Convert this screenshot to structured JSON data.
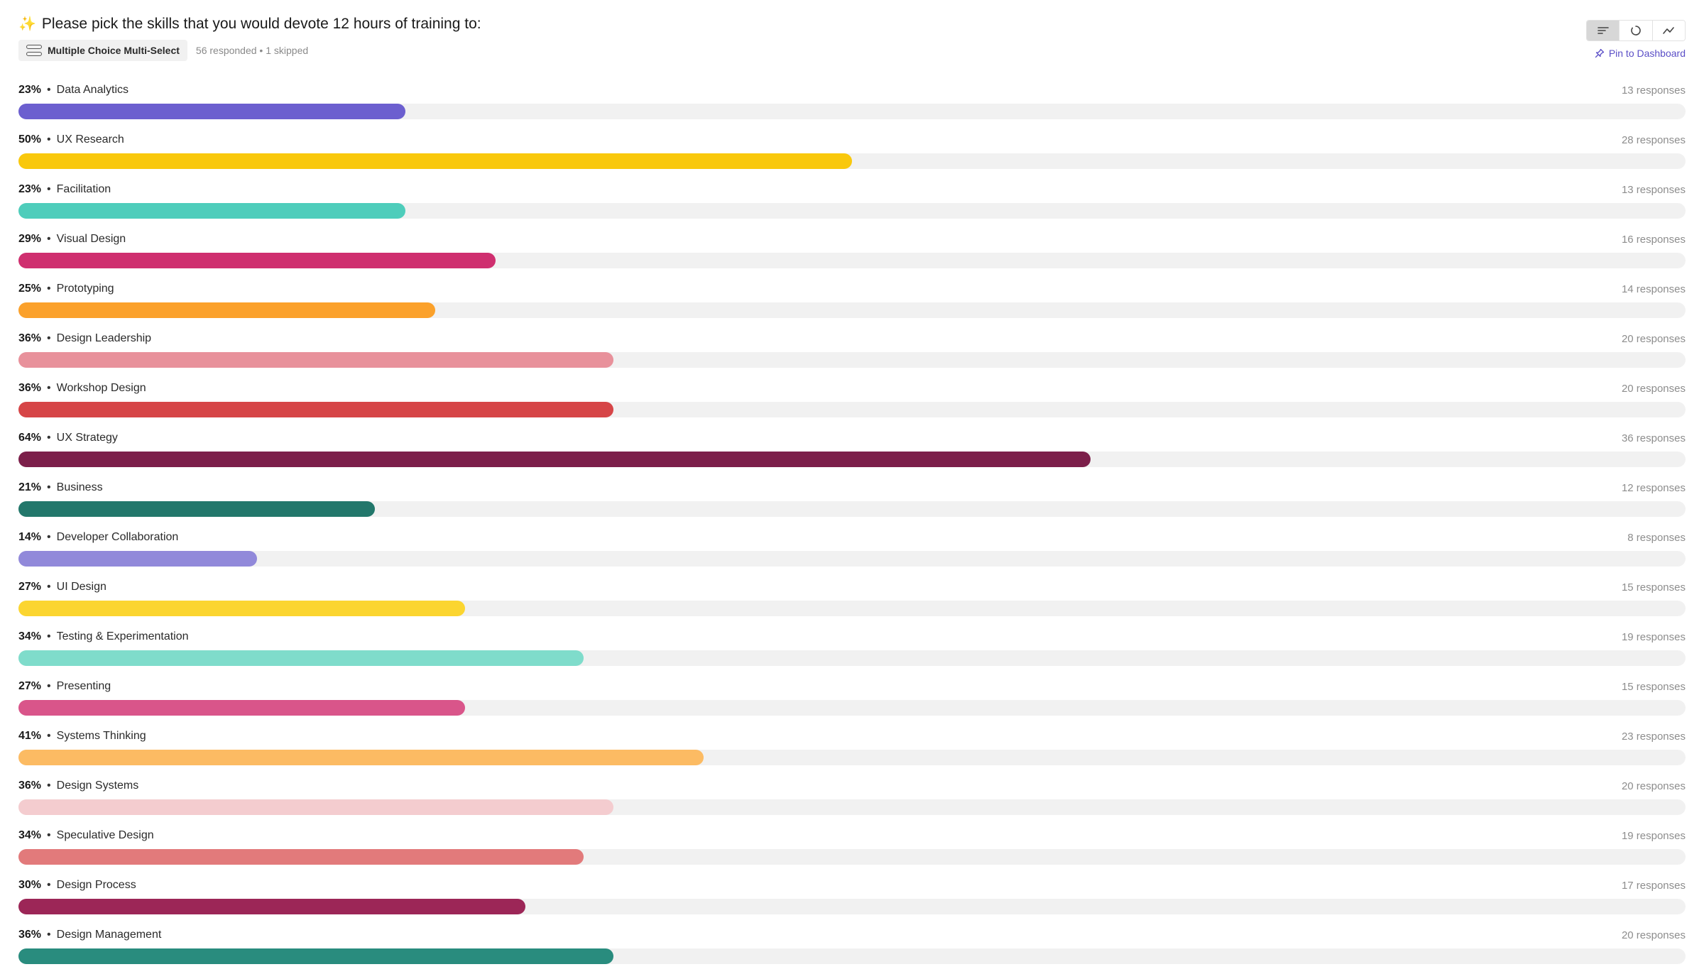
{
  "header": {
    "sparkle": "✨",
    "question": "Please pick the skills that you would devote 12 hours of training to:",
    "type_label": "Multiple Choice Multi-Select",
    "stats": "56 responded • 1 skipped",
    "pin_label": "Pin to Dashboard"
  },
  "view_toggle": {
    "options": [
      {
        "icon": "bar-list-icon",
        "active": true
      },
      {
        "icon": "donut-icon",
        "active": false
      },
      {
        "icon": "trend-line-icon",
        "active": false
      }
    ]
  },
  "chart_data": {
    "type": "bar",
    "orientation": "horizontal",
    "xlim": [
      0,
      1
    ],
    "items": [
      {
        "label": "Data Analytics",
        "percent": "23%",
        "responses": "13 responses",
        "value": 0.232,
        "color": "#6c5fcf"
      },
      {
        "label": "UX Research",
        "percent": "50%",
        "responses": "28 responses",
        "value": 0.5,
        "color": "#f9c80c"
      },
      {
        "label": "Facilitation",
        "percent": "23%",
        "responses": "13 responses",
        "value": 0.232,
        "color": "#4ecdbb"
      },
      {
        "label": "Visual Design",
        "percent": "29%",
        "responses": "16 responses",
        "value": 0.286,
        "color": "#cf2f6f"
      },
      {
        "label": "Prototyping",
        "percent": "25%",
        "responses": "14 responses",
        "value": 0.25,
        "color": "#fba12b"
      },
      {
        "label": "Design Leadership",
        "percent": "36%",
        "responses": "20 responses",
        "value": 0.357,
        "color": "#e8919b"
      },
      {
        "label": "Workshop Design",
        "percent": "36%",
        "responses": "20 responses",
        "value": 0.357,
        "color": "#d64547"
      },
      {
        "label": "UX Strategy",
        "percent": "64%",
        "responses": "36 responses",
        "value": 0.643,
        "color": "#7c1f4a"
      },
      {
        "label": "Business",
        "percent": "21%",
        "responses": "12 responses",
        "value": 0.214,
        "color": "#22776b"
      },
      {
        "label": "Developer Collaboration",
        "percent": "14%",
        "responses": "8 responses",
        "value": 0.143,
        "color": "#9189da"
      },
      {
        "label": "UI Design",
        "percent": "27%",
        "responses": "15 responses",
        "value": 0.268,
        "color": "#fbd530"
      },
      {
        "label": "Testing & Experimentation",
        "percent": "34%",
        "responses": "19 responses",
        "value": 0.339,
        "color": "#7fdccb"
      },
      {
        "label": "Presenting",
        "percent": "27%",
        "responses": "15 responses",
        "value": 0.268,
        "color": "#d9558a"
      },
      {
        "label": "Systems Thinking",
        "percent": "41%",
        "responses": "23 responses",
        "value": 0.411,
        "color": "#fcbb63"
      },
      {
        "label": "Design Systems",
        "percent": "36%",
        "responses": "20 responses",
        "value": 0.357,
        "color": "#f4cccf"
      },
      {
        "label": "Speculative Design",
        "percent": "34%",
        "responses": "19 responses",
        "value": 0.339,
        "color": "#e27a7b"
      },
      {
        "label": "Design Process",
        "percent": "30%",
        "responses": "17 responses",
        "value": 0.304,
        "color": "#9c2657"
      },
      {
        "label": "Design Management",
        "percent": "36%",
        "responses": "20 responses",
        "value": 0.357,
        "color": "#298c7e"
      }
    ]
  }
}
